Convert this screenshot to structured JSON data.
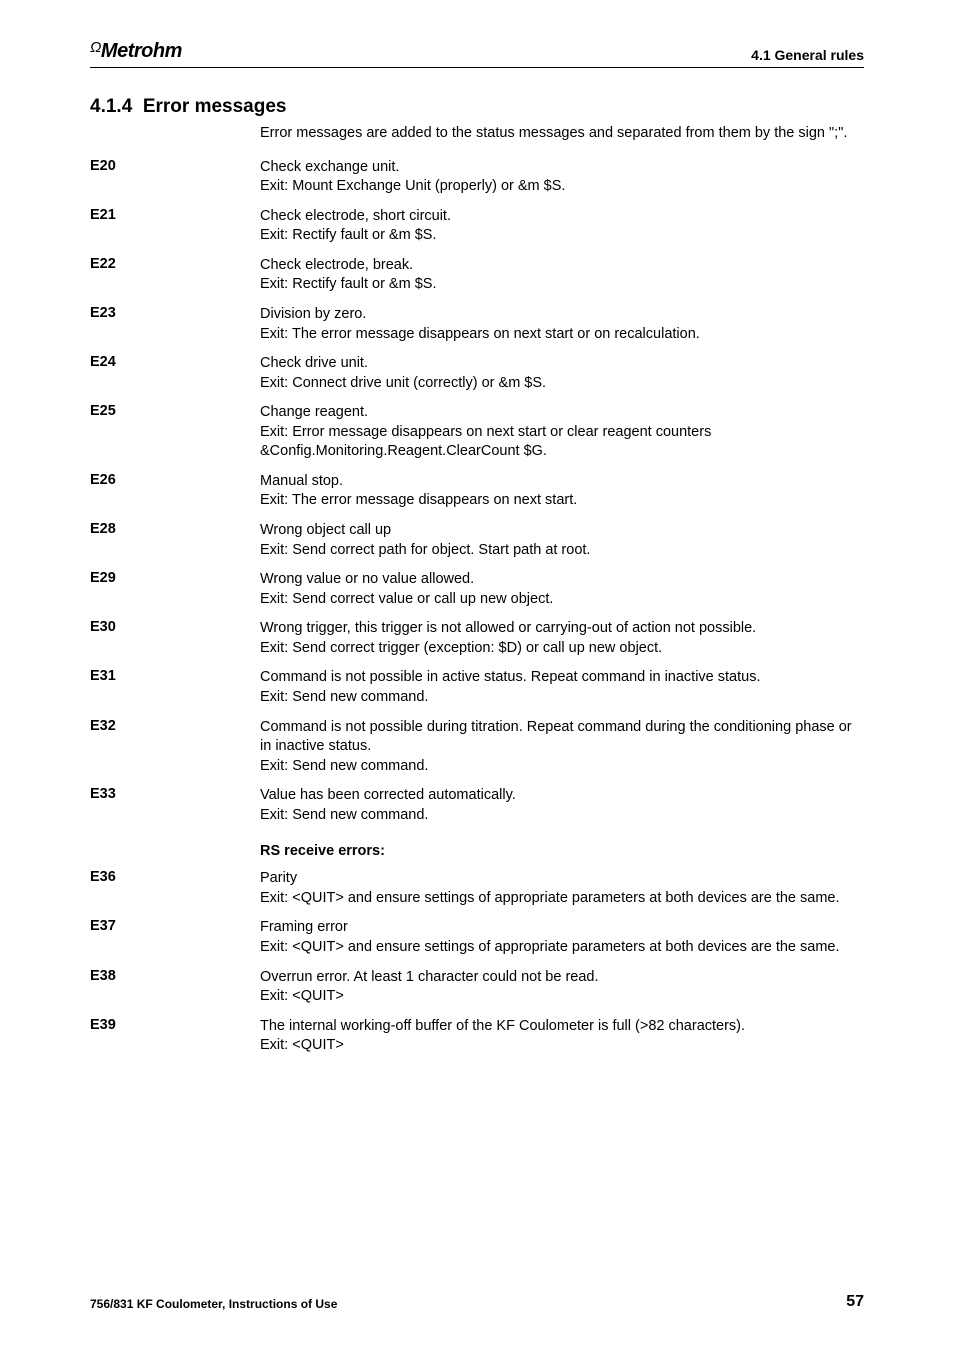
{
  "header": {
    "logo_prefix": "Ω",
    "logo_text": "Metrohm",
    "section_ref": "4.1 General rules"
  },
  "section": {
    "number": "4.1.4",
    "title": "Error messages",
    "intro": "Error messages are added to the status messages and separated from them by the sign \";\"."
  },
  "errors": [
    {
      "code": "E20",
      "desc": "Check exchange unit.\nExit: Mount Exchange Unit (properly) or &m $S."
    },
    {
      "code": "E21",
      "desc": "Check electrode, short circuit.\nExit: Rectify fault or &m $S."
    },
    {
      "code": "E22",
      "desc": "Check electrode, break.\nExit: Rectify fault or &m $S."
    },
    {
      "code": "E23",
      "desc": "Division by zero.\nExit: The error message disappears on next start or on recalculation."
    },
    {
      "code": "E24",
      "desc": "Check drive unit.\nExit: Connect drive unit (correctly) or &m $S."
    },
    {
      "code": "E25",
      "desc": "Change reagent.\nExit: Error message disappears on next start or clear reagent counters &Config.Monitoring.Reagent.ClearCount $G."
    },
    {
      "code": "E26",
      "desc": "Manual stop.\nExit: The error message disappears on next start."
    },
    {
      "code": "E28",
      "desc": "Wrong object call up\nExit: Send correct path for object. Start path at root."
    },
    {
      "code": "E29",
      "desc": "Wrong value or no value allowed.\nExit: Send correct value or call up new object."
    },
    {
      "code": "E30",
      "desc": "Wrong trigger, this trigger is not allowed or carrying-out of action not possible.\nExit: Send correct trigger (exception: $D) or call up new object."
    },
    {
      "code": "E31",
      "desc": "Command is not possible in active status. Repeat command in inactive status.\nExit: Send new command."
    },
    {
      "code": "E32",
      "desc": "Command is not possible during titration. Repeat command during the conditioning phase or in inactive status.\nExit: Send new command."
    },
    {
      "code": "E33",
      "desc": "Value has been corrected automatically.\nExit: Send new command."
    }
  ],
  "rs_heading": "RS receive errors:",
  "rs_errors": [
    {
      "code": "E36",
      "desc": "Parity\nExit: <QUIT> and ensure settings of appropriate parameters at both devices are the same."
    },
    {
      "code": "E37",
      "desc": "Framing error\nExit: <QUIT> and ensure settings of appropriate parameters at both devices are the same."
    },
    {
      "code": "E38",
      "desc": "Overrun error. At least 1 character could not be read.\nExit: <QUIT>"
    },
    {
      "code": "E39",
      "desc": "The internal working-off buffer of the KF Coulometer is full (>82 characters).\nExit: <QUIT>"
    }
  ],
  "footer": {
    "left": "756/831 KF Coulometer, Instructions of Use",
    "page": "57"
  }
}
